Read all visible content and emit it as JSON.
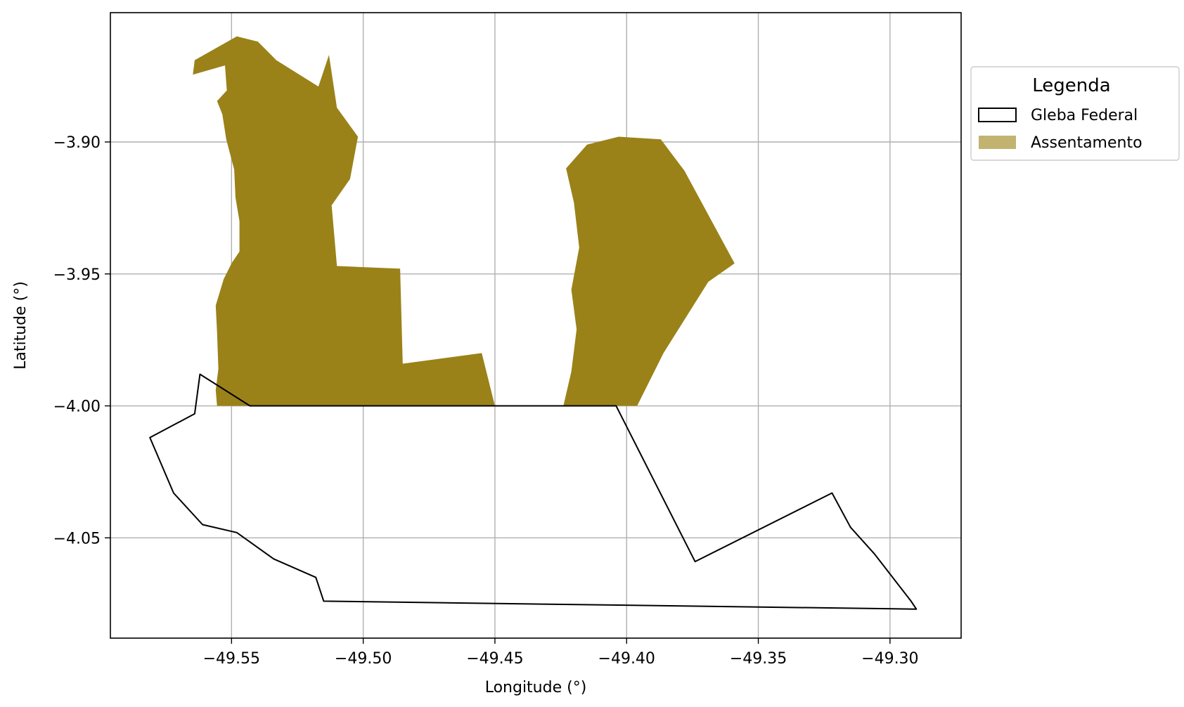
{
  "chart_data": {
    "type": "map",
    "xlabel": "Longitude (°)",
    "ylabel": "Latitude (°)",
    "xlim": [
      -49.596,
      -49.273
    ],
    "ylim": [
      -4.088,
      -3.851
    ],
    "grid": true,
    "x_ticks": [
      -49.55,
      -49.5,
      -49.45,
      -49.4,
      -49.35,
      -49.3
    ],
    "x_tick_labels": [
      "−49.55",
      "−49.50",
      "−49.45",
      "−49.40",
      "−49.35",
      "−49.30"
    ],
    "y_ticks": [
      -3.9,
      -3.95,
      -4.0,
      -4.05
    ],
    "y_tick_labels": [
      "−3.90",
      "−3.95",
      "−4.00",
      "−4.05"
    ],
    "legend": {
      "title": "Legenda",
      "placement": "outside-upper-right",
      "entries": [
        {
          "label": "Gleba Federal",
          "style": "outline",
          "color": "#000000"
        },
        {
          "label": "Assentamento",
          "style": "fill",
          "color": "#c2b370"
        }
      ]
    },
    "colors": {
      "assentamento_fill": "#9a8219",
      "gleba_outline": "#000000",
      "grid": "#b0b0b0"
    },
    "layers": {
      "assentamento": [
        [
          [
            -49.5647,
            -3.8745
          ],
          [
            -49.5525,
            -3.871
          ],
          [
            -49.5518,
            -3.8805
          ],
          [
            -49.5555,
            -3.8845
          ],
          [
            -49.5535,
            -3.8895
          ],
          [
            -49.552,
            -3.899
          ],
          [
            -49.549,
            -3.9105
          ],
          [
            -49.5485,
            -3.921
          ],
          [
            -49.547,
            -3.93
          ],
          [
            -49.547,
            -3.9415
          ],
          [
            -49.55,
            -3.946
          ],
          [
            -49.553,
            -3.952
          ],
          [
            -49.556,
            -3.962
          ],
          [
            -49.5555,
            -3.972
          ],
          [
            -49.555,
            -3.986
          ],
          [
            -49.556,
            -3.994
          ],
          [
            -49.5555,
            -4.0
          ],
          [
            -49.45,
            -4.0
          ],
          [
            -49.455,
            -3.98
          ],
          [
            -49.485,
            -3.984
          ],
          [
            -49.486,
            -3.948
          ],
          [
            -49.51,
            -3.947
          ],
          [
            -49.512,
            -3.924
          ],
          [
            -49.505,
            -3.914
          ],
          [
            -49.502,
            -3.898
          ],
          [
            -49.51,
            -3.887
          ],
          [
            -49.513,
            -3.867
          ],
          [
            -49.517,
            -3.879
          ],
          [
            -49.533,
            -3.869
          ],
          [
            -49.54,
            -3.862
          ],
          [
            -49.548,
            -3.86
          ],
          [
            -49.564,
            -3.869
          ]
        ],
        [
          [
            -49.403,
            -3.898
          ],
          [
            -49.387,
            -3.899
          ],
          [
            -49.378,
            -3.911
          ],
          [
            -49.359,
            -3.946
          ],
          [
            -49.369,
            -3.953
          ],
          [
            -49.386,
            -3.98
          ],
          [
            -49.396,
            -4.0
          ],
          [
            -49.424,
            -4.0
          ],
          [
            -49.421,
            -3.987
          ],
          [
            -49.419,
            -3.971
          ],
          [
            -49.421,
            -3.956
          ],
          [
            -49.418,
            -3.94
          ],
          [
            -49.42,
            -3.923
          ],
          [
            -49.423,
            -3.91
          ],
          [
            -49.415,
            -3.901
          ]
        ]
      ],
      "gleba_federal": [
        [
          [
            -49.543,
            -4.0
          ],
          [
            -49.404,
            -4.0
          ],
          [
            -49.374,
            -4.059
          ],
          [
            -49.322,
            -4.033
          ],
          [
            -49.315,
            -4.046
          ],
          [
            -49.306,
            -4.056
          ],
          [
            -49.292,
            -4.074
          ],
          [
            -49.29,
            -4.077
          ],
          [
            -49.515,
            -4.074
          ],
          [
            -49.518,
            -4.065
          ],
          [
            -49.534,
            -4.058
          ],
          [
            -49.548,
            -4.048
          ],
          [
            -49.561,
            -4.045
          ],
          [
            -49.572,
            -4.033
          ],
          [
            -49.581,
            -4.012
          ],
          [
            -49.564,
            -4.003
          ],
          [
            -49.562,
            -3.988
          ]
        ]
      ]
    }
  }
}
